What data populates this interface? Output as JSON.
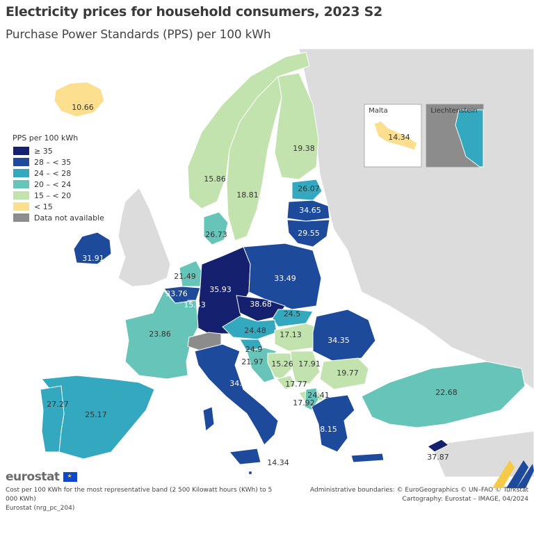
{
  "header": {
    "title": "Electricity prices for household consumers, 2023 S2",
    "subtitle": "Purchase Power Standards (PPS) per 100 kWh"
  },
  "legend": {
    "title": "PPS per 100 kWh",
    "classes": [
      {
        "label": "≥ 35",
        "color": "#15216e"
      },
      {
        "label": "28 – < 35",
        "color": "#1e4a9c"
      },
      {
        "label": "24 – < 28",
        "color": "#33a8bf"
      },
      {
        "label": "20 – < 24",
        "color": "#66c4b8"
      },
      {
        "label": "15 – < 20",
        "color": "#c3e3ae"
      },
      {
        "label": "< 15",
        "color": "#fcdf8e"
      },
      {
        "label": "Data not available",
        "color": "#8c8c8c"
      }
    ]
  },
  "colors": {
    "non_eu": "#dcdcdc",
    "sea": "#ffffff",
    "border": "#ffffff",
    "ge35": "#15216e",
    "c28_35": "#1e4a9c",
    "c24_28": "#33a8bf",
    "c20_24": "#66c4b8",
    "c15_20": "#c3e3ae",
    "lt15": "#fcdf8e",
    "na": "#8c8c8c"
  },
  "countries": {
    "IS": {
      "value": "10.66"
    },
    "NO": {
      "value": "15.86"
    },
    "SE": {
      "value": "18.81"
    },
    "FI": {
      "value": "19.38"
    },
    "EE": {
      "value": "26.07"
    },
    "LV": {
      "value": "34.65"
    },
    "LT": {
      "value": "29.55"
    },
    "DK": {
      "value": "26.73"
    },
    "IE": {
      "value": "31.91"
    },
    "NL": {
      "value": "21.49"
    },
    "BE": {
      "value": "33.76"
    },
    "LU": {
      "value": "15.43"
    },
    "DE": {
      "value": "35.93"
    },
    "PL": {
      "value": "33.49"
    },
    "CZ": {
      "value": "38.68"
    },
    "SK": {
      "value": "24.5"
    },
    "AT": {
      "value": "24.48"
    },
    "HU": {
      "value": "17.13"
    },
    "RO": {
      "value": "34.35"
    },
    "FR": {
      "value": "23.86"
    },
    "SI": {
      "value": "24.9"
    },
    "HR": {
      "value": "21.97"
    },
    "BA": {
      "value": "15.26"
    },
    "RS": {
      "value": "17.91"
    },
    "ME": {
      "value": "17.77"
    },
    "MK": {
      "value": "17.92"
    },
    "BG": {
      "value": "19.77"
    },
    "AL": {
      "value": "24.41"
    },
    "IT": {
      "value": "34.88"
    },
    "ES": {
      "value": "25.17"
    },
    "PT": {
      "value": "27.27"
    },
    "GR": {
      "value": "28.15"
    },
    "TR": {
      "value": "22.68"
    },
    "CY": {
      "value": "37.87"
    },
    "MT": {
      "value": "14.34"
    },
    "CH": {
      "value": ""
    },
    "LI": {
      "value": ""
    }
  },
  "insets": {
    "malta": "Malta",
    "liechtenstein": "Liechtenstein"
  },
  "malta_mainland_label": "14.34",
  "footer": {
    "logo": "eurostat",
    "note_line1": "Cost per 100 KWh for the most representative band (2 500 Kilowatt hours (KWh) to 5",
    "note_line2": "000 KWh)",
    "source": "Eurostat (nrg_pc_204)",
    "boundaries": "Administrative boundaries: © EuroGeographics © UN–FAO © Turkstat",
    "cartography": "Cartography: Eurostat – IMAGE, 04/2024"
  }
}
